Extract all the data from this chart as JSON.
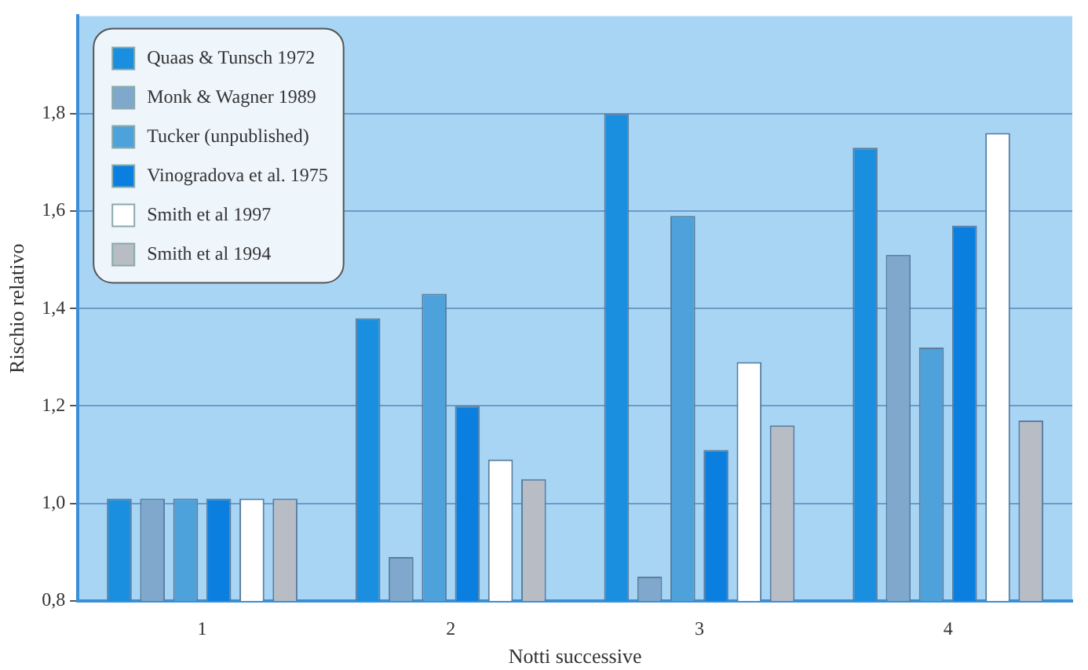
{
  "chart_data": {
    "type": "bar",
    "xlabel": "Notti successive",
    "ylabel": "Rischio relativo",
    "categories": [
      "1",
      "2",
      "3",
      "4"
    ],
    "series": [
      {
        "name": "Quaas & Tunsch 1972",
        "color": "#1a8fe0",
        "values": [
          1.01,
          1.38,
          1.8,
          1.73
        ]
      },
      {
        "name": "Monk & Wagner 1989",
        "color": "#7fa8cc",
        "values": [
          1.01,
          0.89,
          0.85,
          1.51
        ]
      },
      {
        "name": "Tucker (unpublished)",
        "color": "#4ea2dc",
        "values": [
          1.01,
          1.43,
          1.59,
          1.32
        ]
      },
      {
        "name": "Vinogradova et al. 1975",
        "color": "#0a7fe0",
        "values": [
          1.01,
          1.2,
          1.11,
          1.57
        ]
      },
      {
        "name": "Smith et al 1997",
        "color": "#ffffff",
        "values": [
          1.01,
          1.09,
          1.29,
          1.76
        ]
      },
      {
        "name": "Smith et al 1994",
        "color": "#b8bcc4",
        "values": [
          1.01,
          1.05,
          1.16,
          1.17
        ]
      }
    ],
    "ylim": [
      0.8,
      2.0
    ],
    "yticks": [
      {
        "value": 0.8,
        "label": "0,8"
      },
      {
        "value": 1.0,
        "label": "1,0"
      },
      {
        "value": 1.2,
        "label": "1,2"
      },
      {
        "value": 1.4,
        "label": "1,4"
      },
      {
        "value": 1.6,
        "label": "1,6"
      },
      {
        "value": 1.8,
        "label": "1,8"
      }
    ],
    "grid": "y",
    "legend": "top left"
  }
}
